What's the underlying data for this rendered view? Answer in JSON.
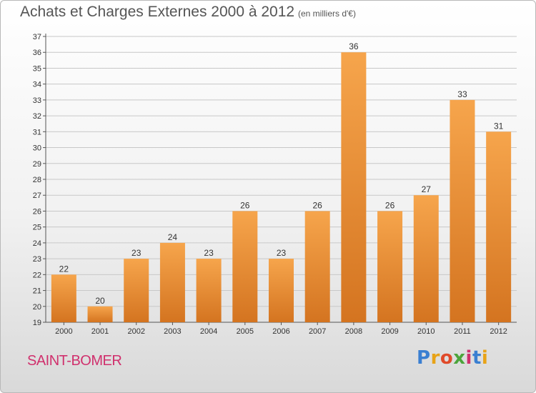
{
  "header": {
    "title": "Achats et Charges Externes 2000 à 2012",
    "unit": "(en milliers d'€)"
  },
  "footer": {
    "commune": "SAINT-BOMER",
    "logo_letters": [
      "P",
      "r",
      "o",
      "x",
      "i",
      "t",
      "i"
    ],
    "logo_colors": [
      "#3a7fd1",
      "#e8a317",
      "#e04a2a",
      "#4ca43b",
      "#d0306d",
      "#3a7fd1",
      "#e8a317"
    ]
  },
  "colors": {
    "bar_light": "#f6a54c",
    "bar_dark": "#d47420",
    "grid": "#c8c8c8",
    "text": "#333333"
  },
  "chart_data": {
    "type": "bar",
    "title": "Achats et Charges Externes 2000 à 2012",
    "unit": "(en milliers d'€)",
    "categories": [
      "2000",
      "2001",
      "2002",
      "2003",
      "2004",
      "2005",
      "2006",
      "2007",
      "2008",
      "2009",
      "2010",
      "2011",
      "2012"
    ],
    "values": [
      22,
      20,
      23,
      24,
      23,
      26,
      23,
      26,
      36,
      26,
      27,
      33,
      31
    ],
    "ylim": [
      19,
      37
    ],
    "yticks": [
      19,
      20,
      21,
      22,
      23,
      24,
      25,
      26,
      27,
      28,
      29,
      30,
      31,
      32,
      33,
      34,
      35,
      36,
      37
    ],
    "grid": true,
    "data_labels": true
  }
}
